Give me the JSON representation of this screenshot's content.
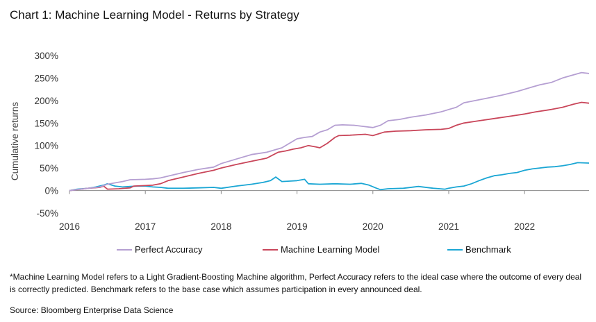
{
  "chart_data": {
    "type": "line",
    "title": "Chart 1: Machine Learning Model - Returns by Strategy",
    "ylabel": "Cumulative returns",
    "xlabel": "",
    "xlim": [
      2016.0,
      2022.85
    ],
    "ylim": [
      -50,
      300
    ],
    "yticks": [
      -50,
      0,
      50,
      100,
      150,
      200,
      250,
      300
    ],
    "ytick_labels": [
      "-50%",
      "0%",
      "50%",
      "100%",
      "150%",
      "200%",
      "250%",
      "300%"
    ],
    "xticks": [
      2016,
      2017,
      2018,
      2019,
      2020,
      2021,
      2022
    ],
    "xtick_labels": [
      "2016",
      "2017",
      "2018",
      "2019",
      "2020",
      "2021",
      "2022"
    ],
    "grid": false,
    "legend_position": "bottom",
    "series": [
      {
        "name": "Perfect Accuracy",
        "color": "#b59fd2",
        "points": [
          [
            2016.0,
            0
          ],
          [
            2016.1,
            2
          ],
          [
            2016.25,
            5
          ],
          [
            2016.4,
            8
          ],
          [
            2016.5,
            14
          ],
          [
            2016.6,
            17
          ],
          [
            2016.7,
            20
          ],
          [
            2016.8,
            24
          ],
          [
            2017.0,
            25
          ],
          [
            2017.1,
            26
          ],
          [
            2017.2,
            28
          ],
          [
            2017.3,
            32
          ],
          [
            2017.5,
            40
          ],
          [
            2017.7,
            47
          ],
          [
            2017.9,
            52
          ],
          [
            2018.0,
            60
          ],
          [
            2018.2,
            70
          ],
          [
            2018.4,
            80
          ],
          [
            2018.6,
            85
          ],
          [
            2018.8,
            95
          ],
          [
            2018.9,
            105
          ],
          [
            2019.0,
            115
          ],
          [
            2019.1,
            118
          ],
          [
            2019.2,
            120
          ],
          [
            2019.3,
            130
          ],
          [
            2019.4,
            135
          ],
          [
            2019.5,
            145
          ],
          [
            2019.6,
            146
          ],
          [
            2019.75,
            145
          ],
          [
            2019.9,
            142
          ],
          [
            2020.0,
            140
          ],
          [
            2020.1,
            145
          ],
          [
            2020.2,
            155
          ],
          [
            2020.35,
            158
          ],
          [
            2020.5,
            163
          ],
          [
            2020.7,
            168
          ],
          [
            2020.9,
            175
          ],
          [
            2021.0,
            180
          ],
          [
            2021.1,
            185
          ],
          [
            2021.2,
            195
          ],
          [
            2021.35,
            200
          ],
          [
            2021.5,
            205
          ],
          [
            2021.7,
            212
          ],
          [
            2021.9,
            220
          ],
          [
            2022.0,
            225
          ],
          [
            2022.1,
            230
          ],
          [
            2022.2,
            235
          ],
          [
            2022.35,
            240
          ],
          [
            2022.5,
            250
          ],
          [
            2022.6,
            255
          ],
          [
            2022.75,
            262
          ],
          [
            2022.85,
            260
          ]
        ]
      },
      {
        "name": "Machine Learning Model",
        "color": "#c9465a",
        "points": [
          [
            2016.0,
            0
          ],
          [
            2016.1,
            2
          ],
          [
            2016.25,
            5
          ],
          [
            2016.4,
            7
          ],
          [
            2016.45,
            10
          ],
          [
            2016.5,
            3
          ],
          [
            2016.65,
            4
          ],
          [
            2016.8,
            6
          ],
          [
            2016.85,
            10
          ],
          [
            2017.0,
            11
          ],
          [
            2017.1,
            12
          ],
          [
            2017.2,
            15
          ],
          [
            2017.3,
            22
          ],
          [
            2017.5,
            30
          ],
          [
            2017.7,
            38
          ],
          [
            2017.9,
            45
          ],
          [
            2018.0,
            50
          ],
          [
            2018.2,
            58
          ],
          [
            2018.4,
            65
          ],
          [
            2018.6,
            72
          ],
          [
            2018.75,
            85
          ],
          [
            2018.85,
            88
          ],
          [
            2018.95,
            92
          ],
          [
            2019.05,
            95
          ],
          [
            2019.15,
            100
          ],
          [
            2019.25,
            97
          ],
          [
            2019.3,
            95
          ],
          [
            2019.4,
            105
          ],
          [
            2019.5,
            118
          ],
          [
            2019.55,
            122
          ],
          [
            2019.7,
            123
          ],
          [
            2019.9,
            125
          ],
          [
            2020.0,
            122
          ],
          [
            2020.15,
            130
          ],
          [
            2020.3,
            132
          ],
          [
            2020.5,
            133
          ],
          [
            2020.7,
            135
          ],
          [
            2020.9,
            136
          ],
          [
            2021.0,
            138
          ],
          [
            2021.1,
            145
          ],
          [
            2021.2,
            150
          ],
          [
            2021.4,
            155
          ],
          [
            2021.6,
            160
          ],
          [
            2021.8,
            165
          ],
          [
            2022.0,
            170
          ],
          [
            2022.15,
            175
          ],
          [
            2022.35,
            180
          ],
          [
            2022.5,
            185
          ],
          [
            2022.65,
            192
          ],
          [
            2022.75,
            196
          ],
          [
            2022.85,
            194
          ]
        ]
      },
      {
        "name": "Benchmark",
        "color": "#1aa6d4",
        "points": [
          [
            2016.0,
            0
          ],
          [
            2016.1,
            3
          ],
          [
            2016.25,
            5
          ],
          [
            2016.35,
            8
          ],
          [
            2016.45,
            12
          ],
          [
            2016.5,
            15
          ],
          [
            2016.6,
            10
          ],
          [
            2016.7,
            8
          ],
          [
            2016.8,
            9
          ],
          [
            2016.9,
            10
          ],
          [
            2017.0,
            10
          ],
          [
            2017.1,
            8
          ],
          [
            2017.2,
            7
          ],
          [
            2017.3,
            5
          ],
          [
            2017.5,
            5
          ],
          [
            2017.7,
            6
          ],
          [
            2017.9,
            7
          ],
          [
            2018.0,
            5
          ],
          [
            2018.2,
            10
          ],
          [
            2018.4,
            14
          ],
          [
            2018.55,
            18
          ],
          [
            2018.65,
            22
          ],
          [
            2018.72,
            30
          ],
          [
            2018.8,
            20
          ],
          [
            2018.9,
            21
          ],
          [
            2019.0,
            22
          ],
          [
            2019.1,
            25
          ],
          [
            2019.15,
            15
          ],
          [
            2019.3,
            14
          ],
          [
            2019.5,
            15
          ],
          [
            2019.7,
            14
          ],
          [
            2019.85,
            16
          ],
          [
            2019.95,
            12
          ],
          [
            2020.05,
            5
          ],
          [
            2020.1,
            2
          ],
          [
            2020.2,
            4
          ],
          [
            2020.4,
            5
          ],
          [
            2020.6,
            9
          ],
          [
            2020.8,
            5
          ],
          [
            2020.95,
            3
          ],
          [
            2021.0,
            5
          ],
          [
            2021.1,
            8
          ],
          [
            2021.2,
            10
          ],
          [
            2021.3,
            15
          ],
          [
            2021.4,
            22
          ],
          [
            2021.5,
            28
          ],
          [
            2021.6,
            33
          ],
          [
            2021.7,
            35
          ],
          [
            2021.8,
            38
          ],
          [
            2021.9,
            40
          ],
          [
            2022.0,
            45
          ],
          [
            2022.1,
            48
          ],
          [
            2022.2,
            50
          ],
          [
            2022.3,
            52
          ],
          [
            2022.4,
            53
          ],
          [
            2022.5,
            55
          ],
          [
            2022.6,
            58
          ],
          [
            2022.7,
            62
          ],
          [
            2022.85,
            61
          ]
        ]
      }
    ],
    "footnote": "*Machine Learning Model refers to a Light Gradient-Boosting Machine algorithm, Perfect Accuracy refers to the ideal case where the outcome of every deal is correctly predicted. Benchmark refers to the base case which assumes participation in every announced deal.",
    "source": "Source: Bloomberg Enterprise Data Science"
  }
}
